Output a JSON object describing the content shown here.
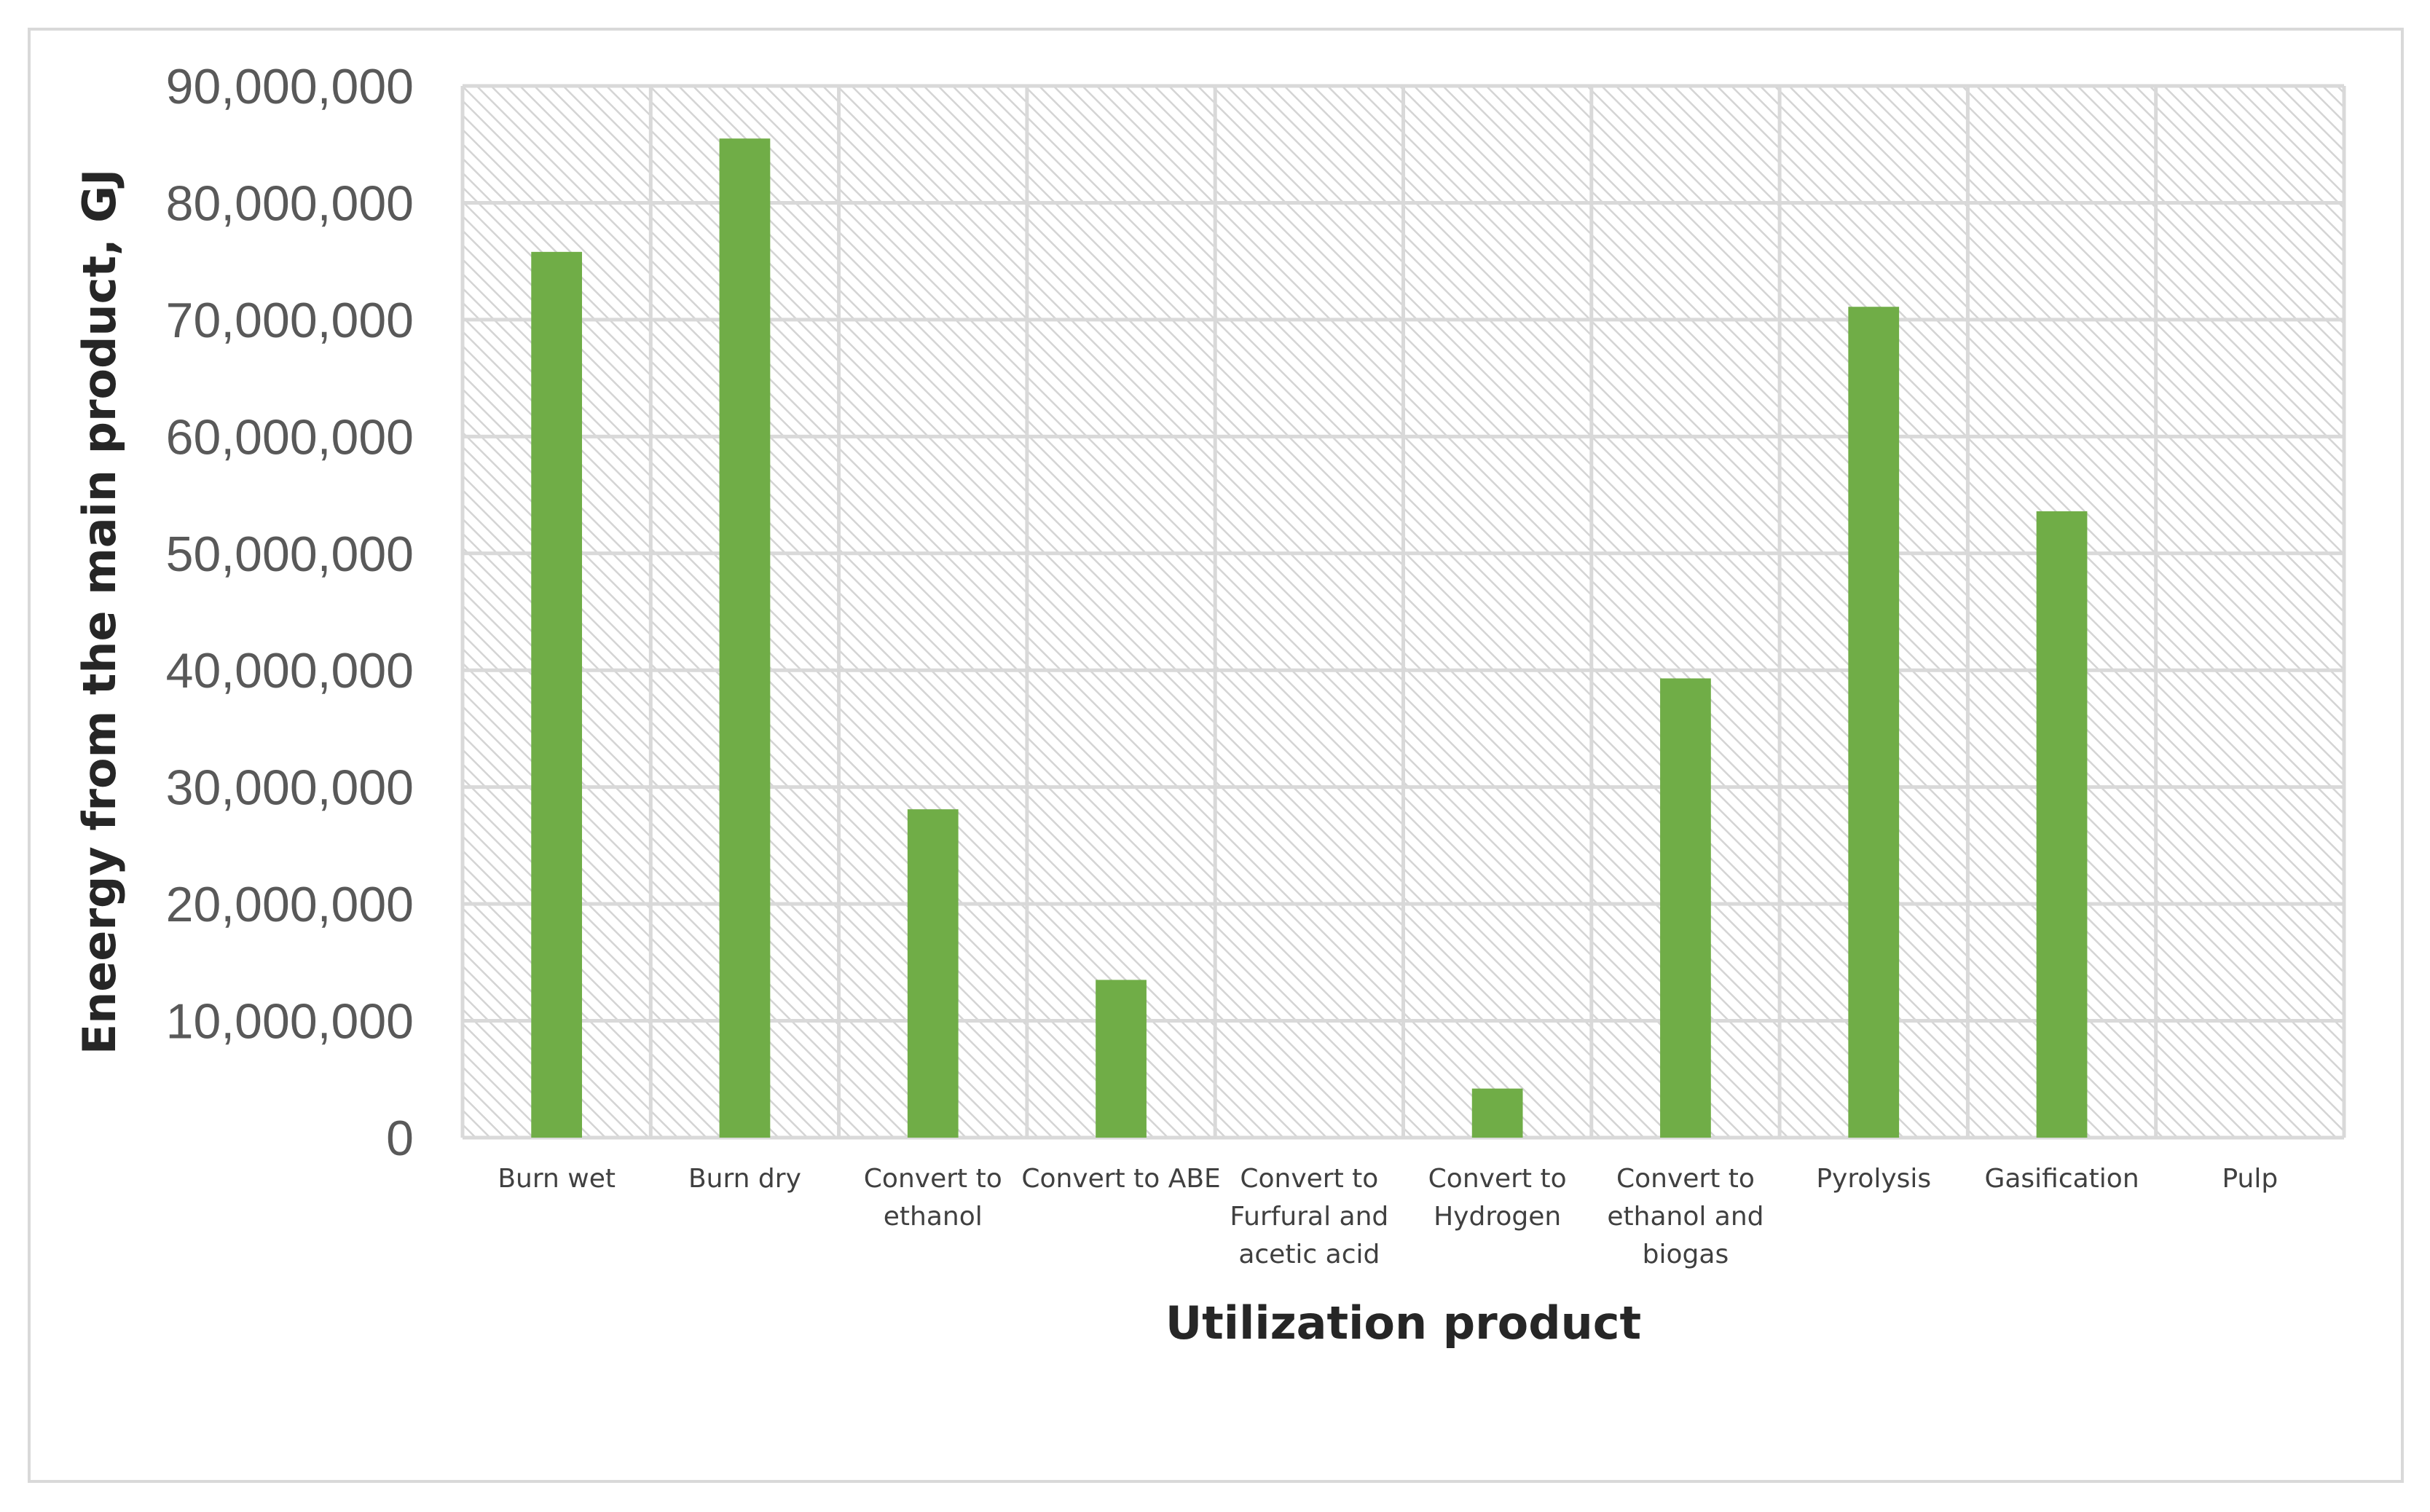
{
  "chart_data": {
    "type": "bar",
    "title": "",
    "xlabel": "Utilization product",
    "ylabel": "Eneergy from the main product, GJ",
    "categories": [
      [
        "Burn wet"
      ],
      [
        "Burn dry"
      ],
      [
        "Convert to",
        "ethanol"
      ],
      [
        "Convert to ABE"
      ],
      [
        "Convert to",
        "Furfural and",
        "acetic acid"
      ],
      [
        "Convert to",
        "Hydrogen"
      ],
      [
        "Convert to",
        "ethanol and",
        "biogas"
      ],
      [
        "Pyrolysis"
      ],
      [
        "Gasification"
      ],
      [
        "Pulp"
      ]
    ],
    "series": [
      {
        "values": [
          75800000,
          85500000,
          28100000,
          13500000,
          0,
          4200000,
          39300000,
          71100000,
          53600000,
          0
        ],
        "color": "#70ad47"
      }
    ],
    "ylim": [
      0,
      90000000
    ],
    "yticks": [
      0,
      10000000,
      20000000,
      30000000,
      40000000,
      50000000,
      60000000,
      70000000,
      80000000,
      90000000
    ],
    "ytick_labels": [
      "0",
      "10,000,000",
      "20,000,000",
      "30,000,000",
      "40,000,000",
      "50,000,000",
      "60,000,000",
      "70,000,000",
      "80,000,000",
      "90,000,000"
    ],
    "grid": true,
    "plot_background": "hatched light gray",
    "legend": "none"
  }
}
